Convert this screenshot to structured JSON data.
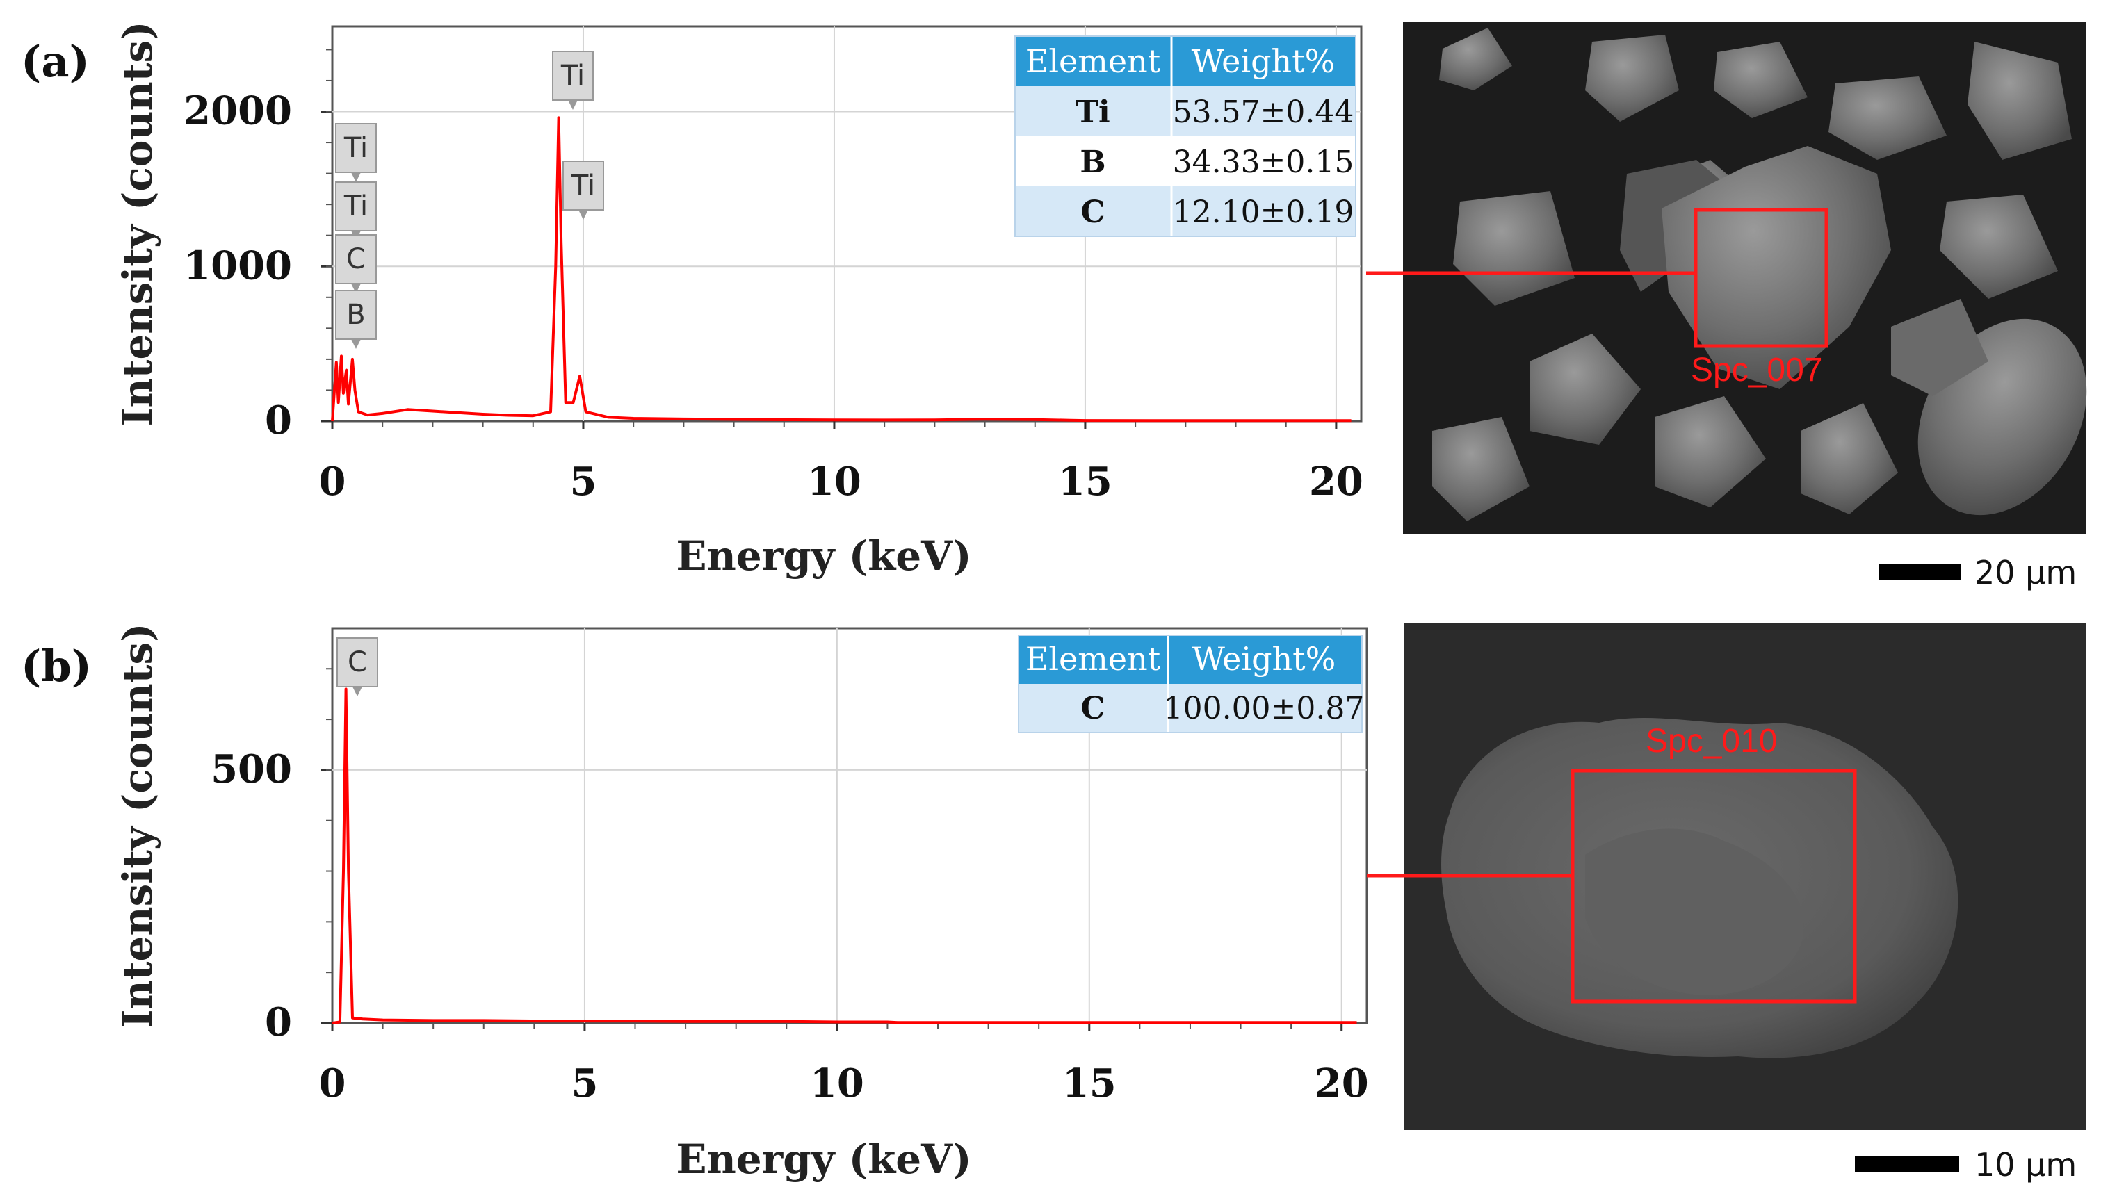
{
  "chart_data": [
    {
      "type": "line",
      "panel": "(a)",
      "xlabel": "Energy (keV)",
      "ylabel": "Intensity (counts)",
      "xlim": [
        0,
        20.5
      ],
      "ylim": [
        0,
        2550
      ],
      "x_ticks": [
        0,
        5,
        10,
        15,
        20
      ],
      "y_ticks": [
        0,
        1000,
        2000
      ],
      "grid": true,
      "color": "#ff0000",
      "series": [
        {
          "points": [
            [
              0,
              0
            ],
            [
              0.08,
              380
            ],
            [
              0.12,
              120
            ],
            [
              0.18,
              420
            ],
            [
              0.22,
              180
            ],
            [
              0.28,
              330
            ],
            [
              0.32,
              110
            ],
            [
              0.4,
              400
            ],
            [
              0.45,
              200
            ],
            [
              0.52,
              60
            ],
            [
              0.7,
              40
            ],
            [
              1.0,
              50
            ],
            [
              1.5,
              75
            ],
            [
              2.0,
              65
            ],
            [
              2.5,
              55
            ],
            [
              3.0,
              45
            ],
            [
              3.5,
              38
            ],
            [
              4.0,
              35
            ],
            [
              4.35,
              60
            ],
            [
              4.45,
              1000
            ],
            [
              4.51,
              1960
            ],
            [
              4.56,
              1150
            ],
            [
              4.65,
              120
            ],
            [
              4.8,
              120
            ],
            [
              4.93,
              290
            ],
            [
              5.05,
              60
            ],
            [
              5.5,
              25
            ],
            [
              6.0,
              18
            ],
            [
              7.0,
              14
            ],
            [
              8.0,
              11
            ],
            [
              9.0,
              9
            ],
            [
              10.0,
              8
            ],
            [
              11.0,
              7
            ],
            [
              12.0,
              8
            ],
            [
              13.0,
              12
            ],
            [
              14.0,
              10
            ],
            [
              14.7,
              6
            ],
            [
              15.0,
              4
            ],
            [
              17.0,
              3
            ],
            [
              20.3,
              3
            ]
          ]
        }
      ],
      "peak_labels": [
        {
          "text": "Ti",
          "x": 4.51
        },
        {
          "text": "Ti",
          "x": 4.93
        },
        {
          "text": "Ti",
          "x": 0.4
        },
        {
          "text": "Ti",
          "x": 0.4
        },
        {
          "text": "C",
          "x": 0.28
        },
        {
          "text": "B",
          "x": 0.18
        }
      ],
      "table": {
        "headers": [
          "Element",
          "Weight%"
        ],
        "rows": [
          [
            "Ti",
            "53.57±0.44"
          ],
          [
            "B",
            "34.33±0.15"
          ],
          [
            "C",
            "12.10±0.19"
          ]
        ]
      },
      "sem": {
        "spot": "Spc_007",
        "scale": "20 μm"
      }
    },
    {
      "type": "line",
      "panel": "(b)",
      "xlabel": "Energy (keV)",
      "ylabel": "Intensity (counts)",
      "xlim": [
        0,
        20.5
      ],
      "ylim": [
        0,
        780
      ],
      "x_ticks": [
        0,
        5,
        10,
        15,
        20
      ],
      "y_ticks": [
        0,
        500
      ],
      "grid": true,
      "color": "#ff0000",
      "series": [
        {
          "points": [
            [
              0,
              0
            ],
            [
              0.15,
              2
            ],
            [
              0.22,
              300
            ],
            [
              0.27,
              660
            ],
            [
              0.32,
              300
            ],
            [
              0.4,
              10
            ],
            [
              0.6,
              8
            ],
            [
              1.0,
              6
            ],
            [
              2.0,
              5
            ],
            [
              3.0,
              5
            ],
            [
              4.0,
              4
            ],
            [
              5.0,
              4
            ],
            [
              6.0,
              4
            ],
            [
              7.0,
              3
            ],
            [
              8.0,
              3
            ],
            [
              9.0,
              3
            ],
            [
              10.0,
              2
            ],
            [
              11.0,
              2
            ],
            [
              11.2,
              1
            ],
            [
              15.0,
              1
            ],
            [
              20.3,
              1
            ]
          ]
        }
      ],
      "peak_labels": [
        {
          "text": "C",
          "x": 0.27
        }
      ],
      "table": {
        "headers": [
          "Element",
          "Weight%"
        ],
        "rows": [
          [
            "C",
            "100.00±0.87"
          ]
        ]
      },
      "sem": {
        "spot": "Spc_010",
        "scale": "10 μm"
      }
    }
  ],
  "colors": {
    "spectrum": "#ff0000",
    "table_header": "#2a9ad6",
    "table_row_alt": "#d6e8f7",
    "sem_box": "#ff1a1a"
  }
}
